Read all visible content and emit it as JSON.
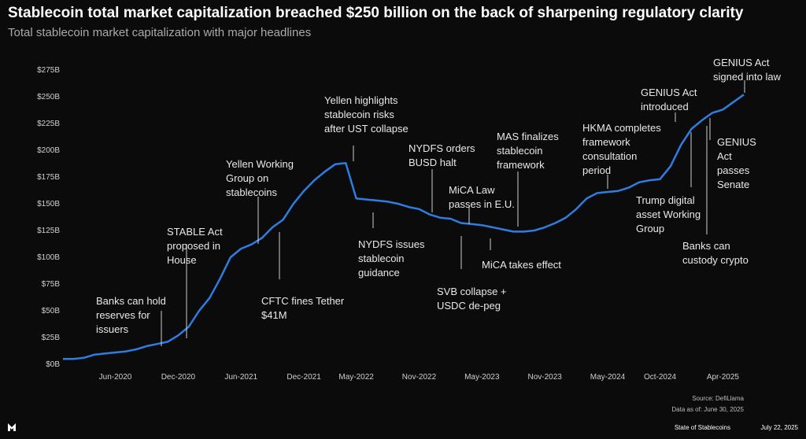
{
  "chart_data": {
    "type": "line",
    "title": "Stablecoin total market capitalization breached $250 billion on the back of sharpening regulatory clarity",
    "subtitle": "Total stablecoin market capitalization with major headlines",
    "categories": [
      null,
      null,
      null,
      null,
      null,
      "Jun-2020",
      null,
      null,
      null,
      null,
      null,
      "Dec-2020",
      null,
      null,
      null,
      null,
      null,
      "Jun-2021",
      null,
      null,
      null,
      null,
      null,
      "Dec-2021",
      null,
      null,
      null,
      null,
      "May-2022",
      null,
      null,
      null,
      null,
      null,
      "Nov-2022",
      null,
      null,
      null,
      null,
      null,
      "May-2023",
      null,
      null,
      null,
      null,
      null,
      "Nov-2023",
      null,
      null,
      null,
      null,
      null,
      "May-2024",
      null,
      null,
      null,
      null,
      "Oct-2024",
      null,
      null,
      null,
      null,
      null,
      "Apr-2025",
      null,
      null
    ],
    "series": [
      {
        "color": "#2f7de1",
        "values": [
          5,
          5,
          6,
          9,
          10,
          11,
          12,
          14,
          17,
          19,
          21,
          27,
          35,
          50,
          62,
          80,
          100,
          108,
          112,
          118,
          128,
          135,
          150,
          162,
          172,
          180,
          187,
          188,
          155,
          154,
          153,
          152,
          150,
          147,
          145,
          140,
          137,
          136,
          132,
          131,
          130,
          128,
          126,
          124,
          124,
          125,
          128,
          132,
          137,
          145,
          155,
          160,
          161,
          162,
          165,
          170,
          172,
          173,
          185,
          205,
          220,
          228,
          235,
          238,
          245,
          252
        ]
      }
    ],
    "ylim": [
      0,
      275
    ],
    "yticks": [
      {
        "value": 0,
        "label": "$0B"
      },
      {
        "value": 25,
        "label": "$25B"
      },
      {
        "value": 50,
        "label": "$50B"
      },
      {
        "value": 75,
        "label": "$75B"
      },
      {
        "value": 100,
        "label": "$100B"
      },
      {
        "value": 125,
        "label": "$125B"
      },
      {
        "value": 150,
        "label": "$150B"
      },
      {
        "value": 175,
        "label": "$175B"
      },
      {
        "value": 200,
        "label": "$200B"
      },
      {
        "value": 225,
        "label": "$225B"
      },
      {
        "value": 250,
        "label": "$250B"
      },
      {
        "value": 275,
        "label": "$275B"
      }
    ],
    "grid": false,
    "annotations": [
      [
        "Banks can hold",
        "reserves for",
        "issuers"
      ],
      [
        "STABLE Act",
        "proposed in",
        "House"
      ],
      [
        "Yellen Working",
        "Group on",
        "stablecoins"
      ],
      [
        "CFTC fines Tether",
        "$41M"
      ],
      [
        "Yellen highlights",
        "stablecoin risks",
        "after UST collapse"
      ],
      [
        "NYDFS issues",
        "stablecoin",
        "guidance"
      ],
      [
        "NYDFS orders",
        "BUSD halt"
      ],
      [
        "MiCA Law",
        "passes in E.U."
      ],
      [
        "SVB collapse +",
        "USDC de-peg"
      ],
      [
        "MAS finalizes",
        "stablecoin",
        "framework"
      ],
      [
        "MiCA takes effect"
      ],
      [
        "HKMA completes",
        "framework",
        "consultation",
        "period"
      ],
      [
        "GENIUS Act",
        "introduced"
      ],
      [
        "Trump digital",
        "asset Working",
        "Group"
      ],
      [
        "GENIUS Act",
        "signed into law"
      ],
      [
        "GENIUS",
        "Act",
        "passes",
        "Senate"
      ],
      [
        "Banks can",
        "custody crypto"
      ]
    ],
    "source": "Source: DefiLlama",
    "data_as_of": "Data as of: June 30, 2025",
    "footer_left": "State of Stablecoins",
    "footer_right": "July 22, 2025"
  }
}
